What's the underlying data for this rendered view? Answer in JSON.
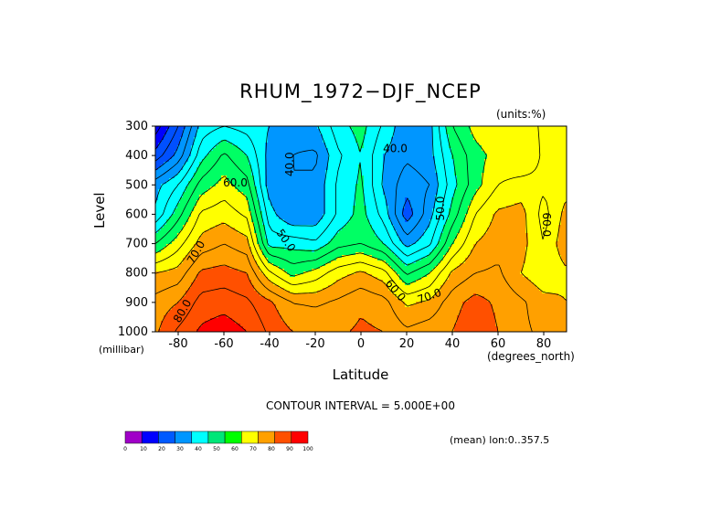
{
  "chart_data": {
    "type": "heatmap",
    "title": "RHUM_1972−DJF_NCEP",
    "units_label": "(units:%)",
    "xlabel": "Latitude",
    "xunit": "(degrees_north)",
    "ylabel": "Level",
    "yunit": "(millibar)",
    "xlim": [
      -90,
      90
    ],
    "ylim": [
      1000,
      300
    ],
    "x_ticks": [
      -80,
      -60,
      -40,
      -20,
      0,
      20,
      40,
      60,
      80
    ],
    "y_ticks": [
      300,
      400,
      500,
      600,
      700,
      800,
      900,
      1000
    ],
    "x": [
      -90,
      -80,
      -70,
      -60,
      -50,
      -40,
      -30,
      -20,
      -10,
      0,
      10,
      20,
      30,
      40,
      50,
      60,
      70,
      80,
      90
    ],
    "y": [
      300,
      400,
      500,
      600,
      700,
      800,
      900,
      1000
    ],
    "z": [
      [
        12,
        25,
        42,
        45,
        43,
        40,
        37,
        39,
        48,
        52,
        44,
        36,
        38,
        55,
        62,
        64,
        62,
        66,
        65
      ],
      [
        22,
        32,
        48,
        56,
        50,
        38,
        35,
        34,
        44,
        50,
        40,
        36,
        38,
        50,
        58,
        62,
        60,
        66,
        66
      ],
      [
        38,
        45,
        57,
        62,
        57,
        37,
        35,
        36,
        46,
        51,
        39,
        32,
        35,
        48,
        58,
        65,
        67,
        66,
        68
      ],
      [
        41,
        53,
        66,
        68,
        64,
        42,
        35,
        36,
        46,
        52,
        43,
        27,
        38,
        52,
        65,
        71,
        72,
        63,
        72
      ],
      [
        55,
        63,
        72,
        75,
        72,
        48,
        48,
        46,
        53,
        55,
        50,
        38,
        44,
        60,
        70,
        73,
        72,
        65,
        74
      ],
      [
        70,
        72,
        81,
        82,
        80,
        66,
        58,
        62,
        68,
        71,
        67,
        54,
        60,
        71,
        75,
        76,
        70,
        66,
        69
      ],
      [
        77,
        80,
        87,
        88,
        86,
        81,
        75,
        74,
        76,
        79,
        77,
        69,
        71,
        78,
        82,
        79,
        76,
        72,
        70
      ],
      [
        79,
        86,
        91,
        93,
        90,
        84,
        80,
        80,
        79,
        81,
        80,
        76,
        78,
        80,
        84,
        80,
        76,
        74,
        72
      ]
    ],
    "contour_interval": "CONTOUR INTERVAL = 5.000E+00",
    "contour_labels": [
      "40.0",
      "40.0",
      "50.0",
      "50.0",
      "60.0",
      "60.0",
      "60.0",
      "70.0",
      "70.0",
      "80.0"
    ],
    "colorbar_ticks": [
      "0",
      "10",
      "20",
      "30",
      "40",
      "50",
      "60",
      "70",
      "80",
      "90",
      "100"
    ],
    "colorbar_colors": [
      "#a000c8",
      "#0000ff",
      "#005aff",
      "#0096ff",
      "#00ffff",
      "#00e678",
      "#00ff00",
      "#ffff00",
      "#ffa000",
      "#ff5000",
      "#ff0000"
    ],
    "level_colors": [
      "#a000c8",
      "#0000ff",
      "#0050ff",
      "#0096ff",
      "#00ffff",
      "#00ff64",
      "#ffff00",
      "#ffa000",
      "#ff5000",
      "#ff0000"
    ],
    "mean_label": "(mean) lon:0..357.5"
  }
}
